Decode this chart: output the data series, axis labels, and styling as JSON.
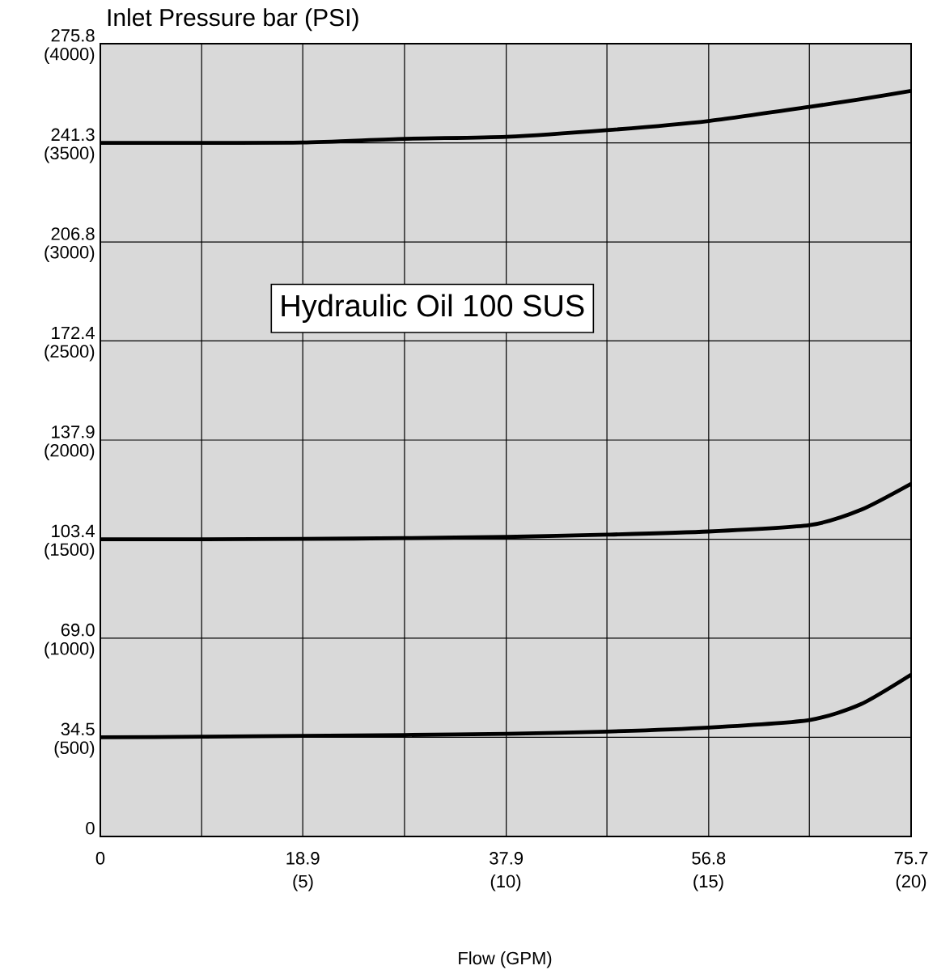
{
  "chart_data": {
    "type": "line",
    "title": "Inlet Pressure bar (PSI)",
    "xlabel": "Flow (GPM)",
    "annotations": [
      "Hydraulic Oil 100 SUS"
    ],
    "xlim": [
      0,
      75.7
    ],
    "ylim": [
      0,
      275.8
    ],
    "xticks": [
      0,
      {
        "value": 9.46,
        "label": null
      },
      18.9,
      {
        "value": 28.4,
        "label": null
      },
      37.9,
      {
        "value": 47.3,
        "label": null
      },
      56.8,
      {
        "value": 66.2,
        "label": null
      },
      75.7
    ],
    "x2lim": [
      0,
      20
    ],
    "x2ticks": [
      {
        "value": 5,
        "label": "(5)"
      },
      {
        "value": 10,
        "label": "(10)"
      },
      {
        "value": 15,
        "label": "(15)"
      },
      {
        "value": 20,
        "label": "(20)"
      }
    ],
    "yticks": [
      0,
      34.5,
      {
        "value": 69.0,
        "label": "69.0"
      },
      103.4,
      137.9,
      172.4,
      206.8,
      241.3,
      275.8
    ],
    "y2lim": [
      0,
      4000
    ],
    "y2ticks": [
      {
        "value": 500,
        "label": "(500)"
      },
      {
        "value": 1000,
        "label": "(1000)"
      },
      {
        "value": 1500,
        "label": "(1500)"
      },
      {
        "value": 2000,
        "label": "(2000)"
      },
      {
        "value": 2500,
        "label": "(2500)"
      },
      {
        "value": 3000,
        "label": "(3000)"
      },
      {
        "value": 3500,
        "label": "(3500)"
      },
      {
        "value": 4000,
        "label": "(4000)"
      }
    ],
    "x": [
      0,
      9.46,
      18.9,
      28.4,
      37.9,
      47.3,
      56.8,
      66.2,
      71,
      75.7
    ],
    "series": [
      {
        "color": "#000000",
        "values": [
          241.3,
          241.3,
          241.4,
          242.7,
          243.4,
          245.7,
          248.9,
          253.8,
          256.5,
          259.4
        ]
      },
      {
        "color": "#000000",
        "values": [
          103.4,
          103.4,
          103.5,
          103.8,
          104.2,
          105.0,
          106.1,
          108.3,
          113.6,
          122.7
        ]
      },
      {
        "color": "#000000",
        "values": [
          34.5,
          34.7,
          35.0,
          35.3,
          35.7,
          36.5,
          37.9,
          40.5,
          46.0,
          56.3
        ]
      }
    ],
    "grid": true,
    "legend": false,
    "marker": "none",
    "line_style": "solid"
  }
}
